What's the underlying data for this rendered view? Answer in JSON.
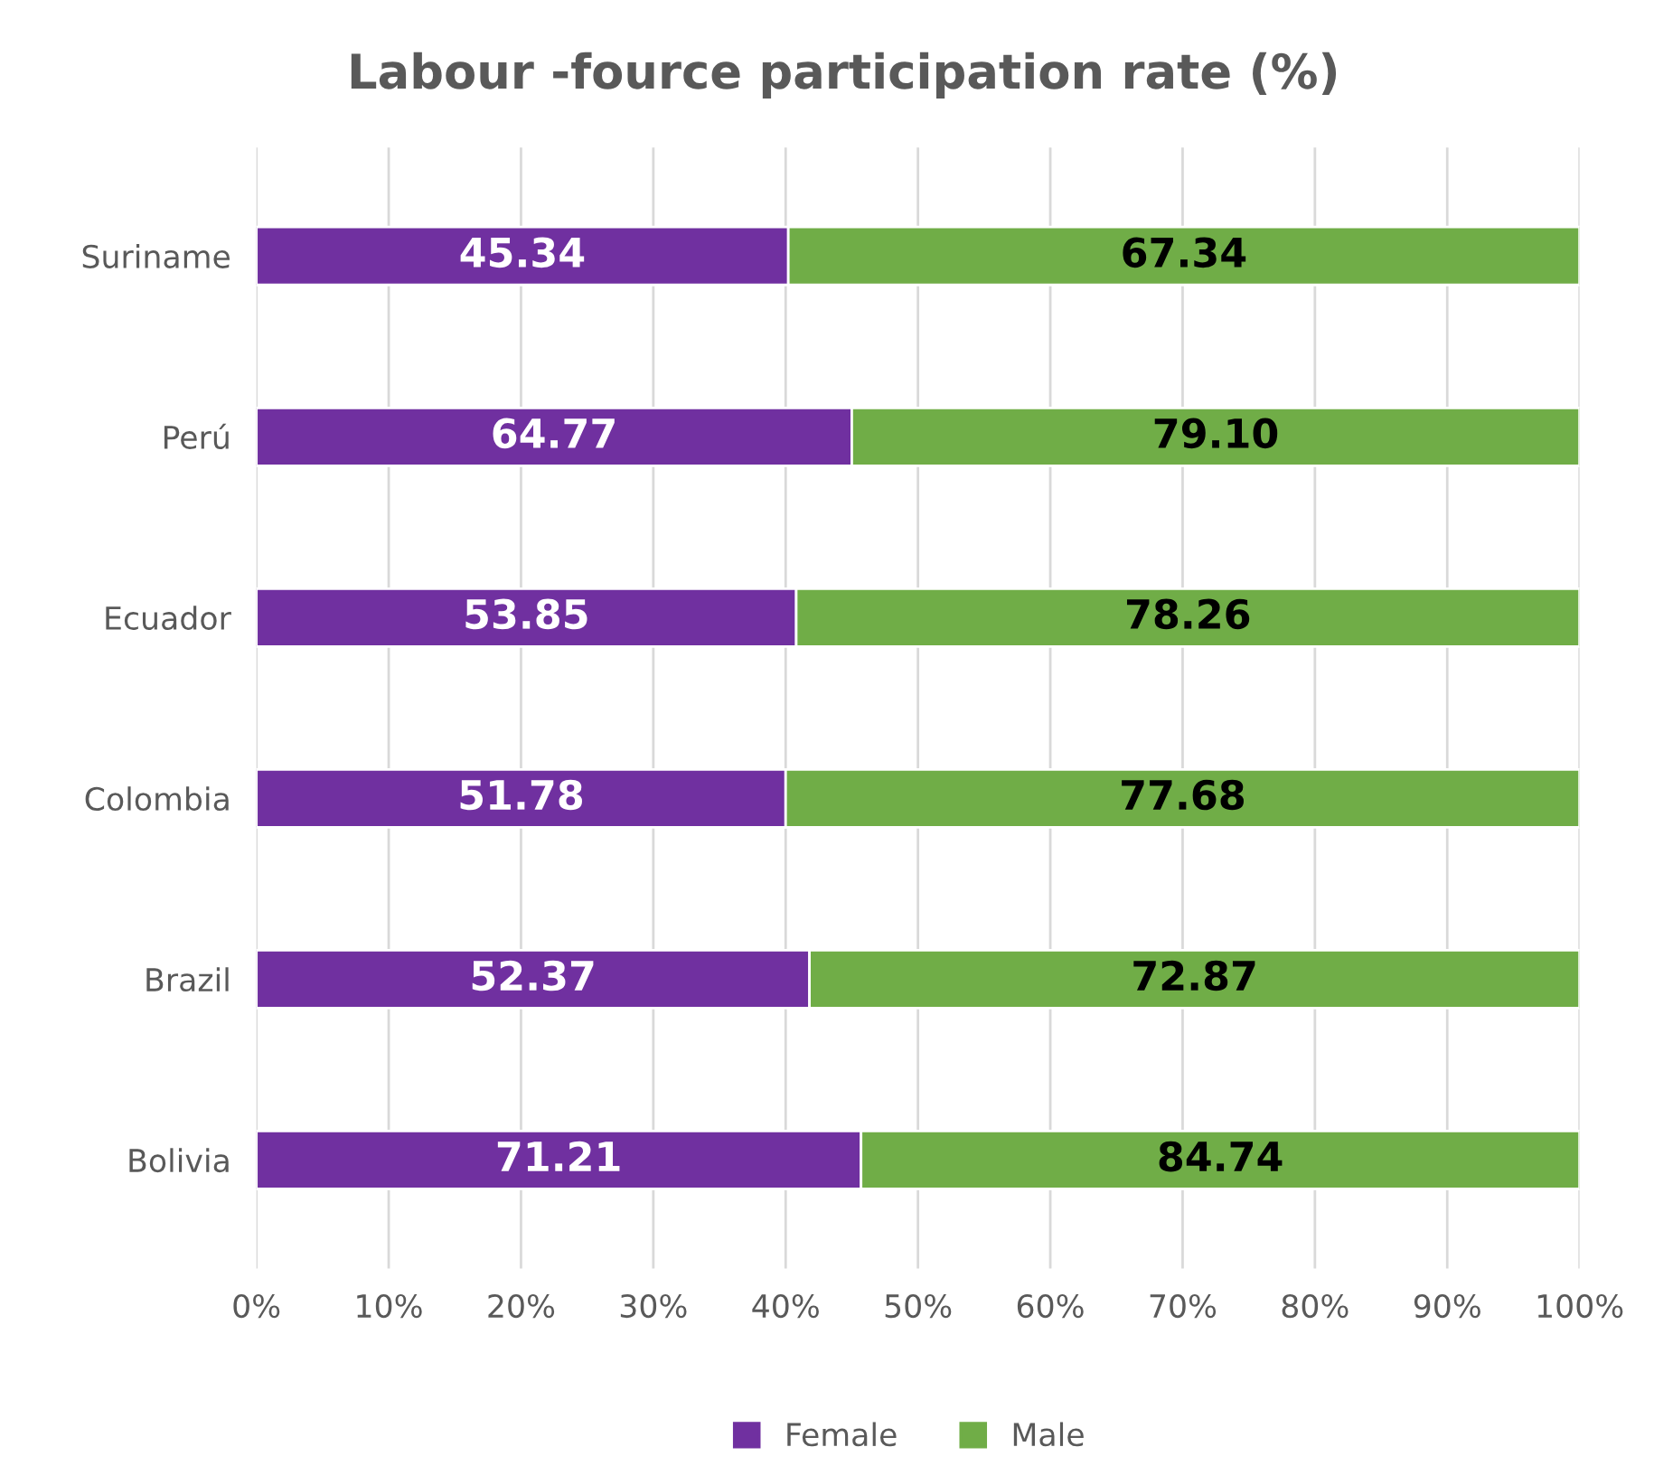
{
  "chart_data": {
    "type": "bar",
    "orientation": "horizontal",
    "stacked": true,
    "title": "Labour -fource participation rate (%)",
    "categories": [
      "Suriname",
      "Perú",
      "Ecuador",
      "Colombia",
      "Brazil",
      "Bolivia"
    ],
    "series": [
      {
        "name": "Female",
        "color": "#7030a0",
        "values": [
          40.2,
          45.0,
          40.8,
          40.0,
          41.8,
          45.7
        ]
      },
      {
        "name": "Male",
        "color": "#70ad47",
        "values": [
          59.8,
          55.0,
          59.2,
          60.0,
          58.2,
          54.3
        ]
      }
    ],
    "annotations": [
      "45.34",
      "67.34",
      "64.77",
      "79.10",
      "53.85",
      "78.26",
      "51.78",
      "77.68",
      "52.37",
      "72.87",
      "71.21",
      "84.74"
    ],
    "xlim": [
      0,
      100
    ],
    "xticks": [
      {
        "value": 0,
        "label": "0%"
      },
      {
        "value": 10,
        "label": "10%"
      },
      {
        "value": 20,
        "label": "20%"
      },
      {
        "value": 30,
        "label": "30%"
      },
      {
        "value": 40,
        "label": "40%"
      },
      {
        "value": 50,
        "label": "50%"
      },
      {
        "value": 60,
        "label": "60%"
      },
      {
        "value": 70,
        "label": "70%"
      },
      {
        "value": 80,
        "label": "80%"
      },
      {
        "value": 90,
        "label": "90%"
      },
      {
        "value": 100,
        "label": "100%"
      }
    ],
    "grid": "x",
    "legend": "bottom"
  }
}
